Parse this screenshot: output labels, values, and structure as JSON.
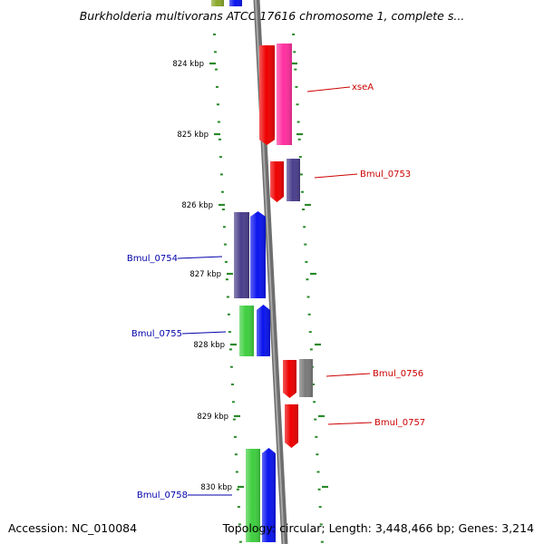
{
  "title": "Burkholderia multivorans ATCC 17616 chromosome 1, complete s...",
  "footer": {
    "accession": "Accession: NC_010084",
    "summary": "Topology: circular; Length: 3,448,466 bp; Genes: 3,214"
  },
  "ruler": {
    "ticks": [
      "824 kbp",
      "825 kbp",
      "826 kbp",
      "827 kbp",
      "828 kbp",
      "829 kbp",
      "830 kbp"
    ]
  },
  "genes": [
    {
      "label": "xseA",
      "color": "#cc0000"
    },
    {
      "label": "Bmul_0753",
      "color": "#cc0000"
    },
    {
      "label": "Bmul_0754",
      "color": "#0000aa"
    },
    {
      "label": "Bmul_0755",
      "color": "#0000aa"
    },
    {
      "label": "Bmul_0756",
      "color": "#cc0000"
    },
    {
      "label": "Bmul_0757",
      "color": "#cc0000"
    },
    {
      "label": "Bmul_0758",
      "color": "#0000aa"
    }
  ],
  "colors": {
    "backbone": "#8a8a8a",
    "tick": "#2a8a2a",
    "red": "#ee0000",
    "pink": "#ff2fa0",
    "purple": "#4a3f8c",
    "blue": "#0a14ee",
    "green": "#3fcf3f",
    "gray": "#7a7a7a",
    "olive": "#8aa82a"
  }
}
